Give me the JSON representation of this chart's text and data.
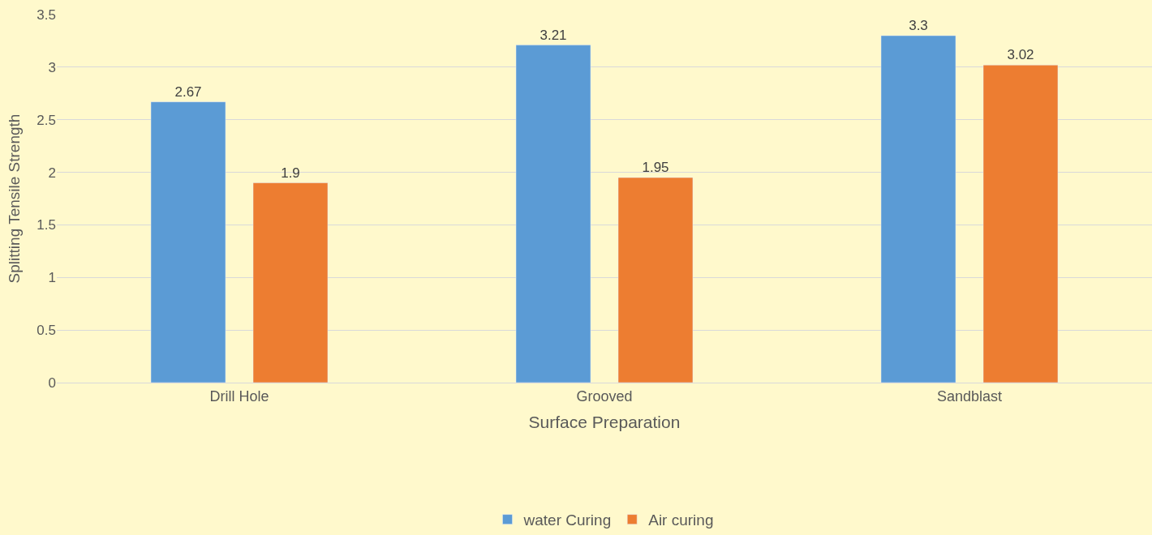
{
  "chart_data": {
    "type": "bar",
    "xlabel": "Surface Preparation",
    "ylabel": "Splitting Tensile Strength",
    "categories": [
      "Drill Hole",
      "Grooved",
      "Sandblast"
    ],
    "series": [
      {
        "name": "water Curing",
        "color": "#5b9bd5",
        "values": [
          2.67,
          3.21,
          3.3
        ]
      },
      {
        "name": "Air curing",
        "color": "#ed7d31",
        "values": [
          1.9,
          1.95,
          3.02
        ]
      }
    ],
    "ylim": [
      0,
      3.5
    ],
    "yticks": [
      0,
      0.5,
      1,
      1.5,
      2,
      2.5,
      3,
      3.5
    ],
    "grid": "y",
    "legend": "bottom",
    "data_labels": true
  }
}
